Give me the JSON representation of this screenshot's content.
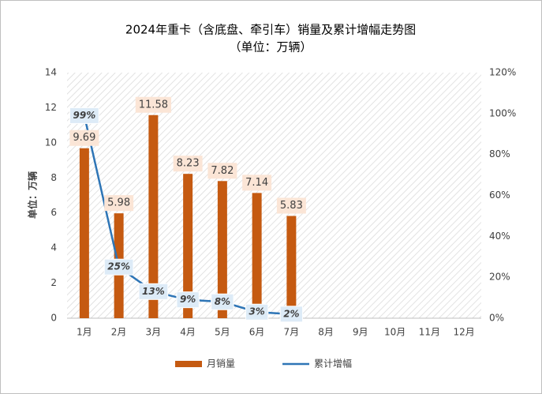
{
  "chart_data": {
    "type": "bar_line",
    "title": "2024年重卡（含底盘、牵引车）销量及累计增幅走势图",
    "subtitle": "（单位：万辆）",
    "y_label": "单位：万辆",
    "categories": [
      "1月",
      "2月",
      "3月",
      "4月",
      "5月",
      "6月",
      "7月",
      "8月",
      "9月",
      "10月",
      "11月",
      "12月"
    ],
    "series": [
      {
        "name": "月销量",
        "type": "bar",
        "color": "#c55a11",
        "values": [
          9.69,
          5.98,
          11.58,
          8.23,
          7.82,
          7.14,
          5.83,
          null,
          null,
          null,
          null,
          null
        ]
      },
      {
        "name": "累计增幅",
        "type": "line",
        "axis": "y2",
        "color": "#2e75b6",
        "values": [
          99,
          25,
          13,
          9,
          8,
          3,
          2,
          null,
          null,
          null,
          null,
          null
        ],
        "value_labels": [
          "99%",
          "25%",
          "13%",
          "9%",
          "8%",
          "3%",
          "2%",
          null,
          null,
          null,
          null,
          null
        ]
      }
    ],
    "ylim": [
      0,
      14
    ],
    "yticks": [
      0,
      2,
      4,
      6,
      8,
      10,
      12,
      14
    ],
    "y2lim": [
      0,
      120
    ],
    "y2ticks": [
      {
        "value": 0,
        "label": "0%"
      },
      {
        "value": 20,
        "label": "20%"
      },
      {
        "value": 40,
        "label": "40%"
      },
      {
        "value": 60,
        "label": "60%"
      },
      {
        "value": 80,
        "label": "80%"
      },
      {
        "value": 100,
        "label": "100%"
      },
      {
        "value": 120,
        "label": "120%"
      }
    ],
    "grid": false,
    "legend": "bottom"
  }
}
